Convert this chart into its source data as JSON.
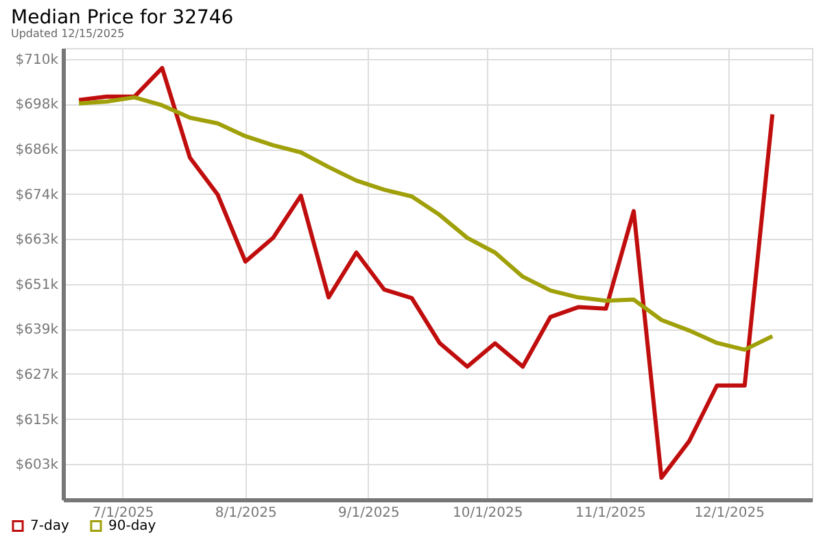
{
  "chart_data": {
    "type": "line",
    "title": "Median Price for 32746",
    "subtitle": "Updated 12/15/2025",
    "x": [
      "2025-06-20",
      "2025-06-27",
      "2025-07-04",
      "2025-07-11",
      "2025-07-18",
      "2025-07-25",
      "2025-08-01",
      "2025-08-08",
      "2025-08-15",
      "2025-08-22",
      "2025-08-29",
      "2025-09-05",
      "2025-09-12",
      "2025-09-19",
      "2025-09-26",
      "2025-10-03",
      "2025-10-10",
      "2025-10-17",
      "2025-10-24",
      "2025-10-31",
      "2025-11-07",
      "2025-11-14",
      "2025-11-21",
      "2025-11-28",
      "2025-12-05",
      "2025-12-12"
    ],
    "series": [
      {
        "name": "7-day",
        "color": "#c00d0d",
        "values": [
          699400,
          700300,
          700300,
          707900,
          684100,
          674300,
          656500,
          662800,
          674000,
          647000,
          658900,
          649100,
          646800,
          634900,
          628600,
          634800,
          628600,
          641800,
          644400,
          644000,
          669900,
          599100,
          608800,
          623600,
          623600,
          695600
        ]
      },
      {
        "name": "90-day",
        "color": "#a0a00a",
        "values": [
          698500,
          699000,
          700100,
          698000,
          694700,
          693200,
          689800,
          687400,
          685500,
          681600,
          678000,
          675600,
          673800,
          668900,
          662800,
          658900,
          652500,
          648800,
          647000,
          646100,
          646400,
          641000,
          638200,
          634900,
          633100,
          636700
        ]
      }
    ],
    "xlim": [
      "2025-06-16",
      "2025-12-22"
    ],
    "xticks": [
      {
        "value": "2025-07-01",
        "label": "7/1/2025"
      },
      {
        "value": "2025-08-01",
        "label": "8/1/2025"
      },
      {
        "value": "2025-09-01",
        "label": "9/1/2025"
      },
      {
        "value": "2025-10-01",
        "label": "10/1/2025"
      },
      {
        "value": "2025-11-01",
        "label": "11/1/2025"
      },
      {
        "value": "2025-12-01",
        "label": "12/1/2025"
      }
    ],
    "ylim": [
      593300,
      713200
    ],
    "yticks": [
      {
        "value": 602750,
        "label": "$603k"
      },
      {
        "value": 614700,
        "label": "$615k"
      },
      {
        "value": 626650,
        "label": "$627k"
      },
      {
        "value": 638600,
        "label": "$639k"
      },
      {
        "value": 650550,
        "label": "$651k"
      },
      {
        "value": 662500,
        "label": "$663k"
      },
      {
        "value": 674450,
        "label": "$674k"
      },
      {
        "value": 686400,
        "label": "$686k"
      },
      {
        "value": 698350,
        "label": "$698k"
      },
      {
        "value": 710300,
        "label": "$710k"
      }
    ],
    "grid": true,
    "legend": "bottom left",
    "marker": "none",
    "line_style": "solid"
  }
}
